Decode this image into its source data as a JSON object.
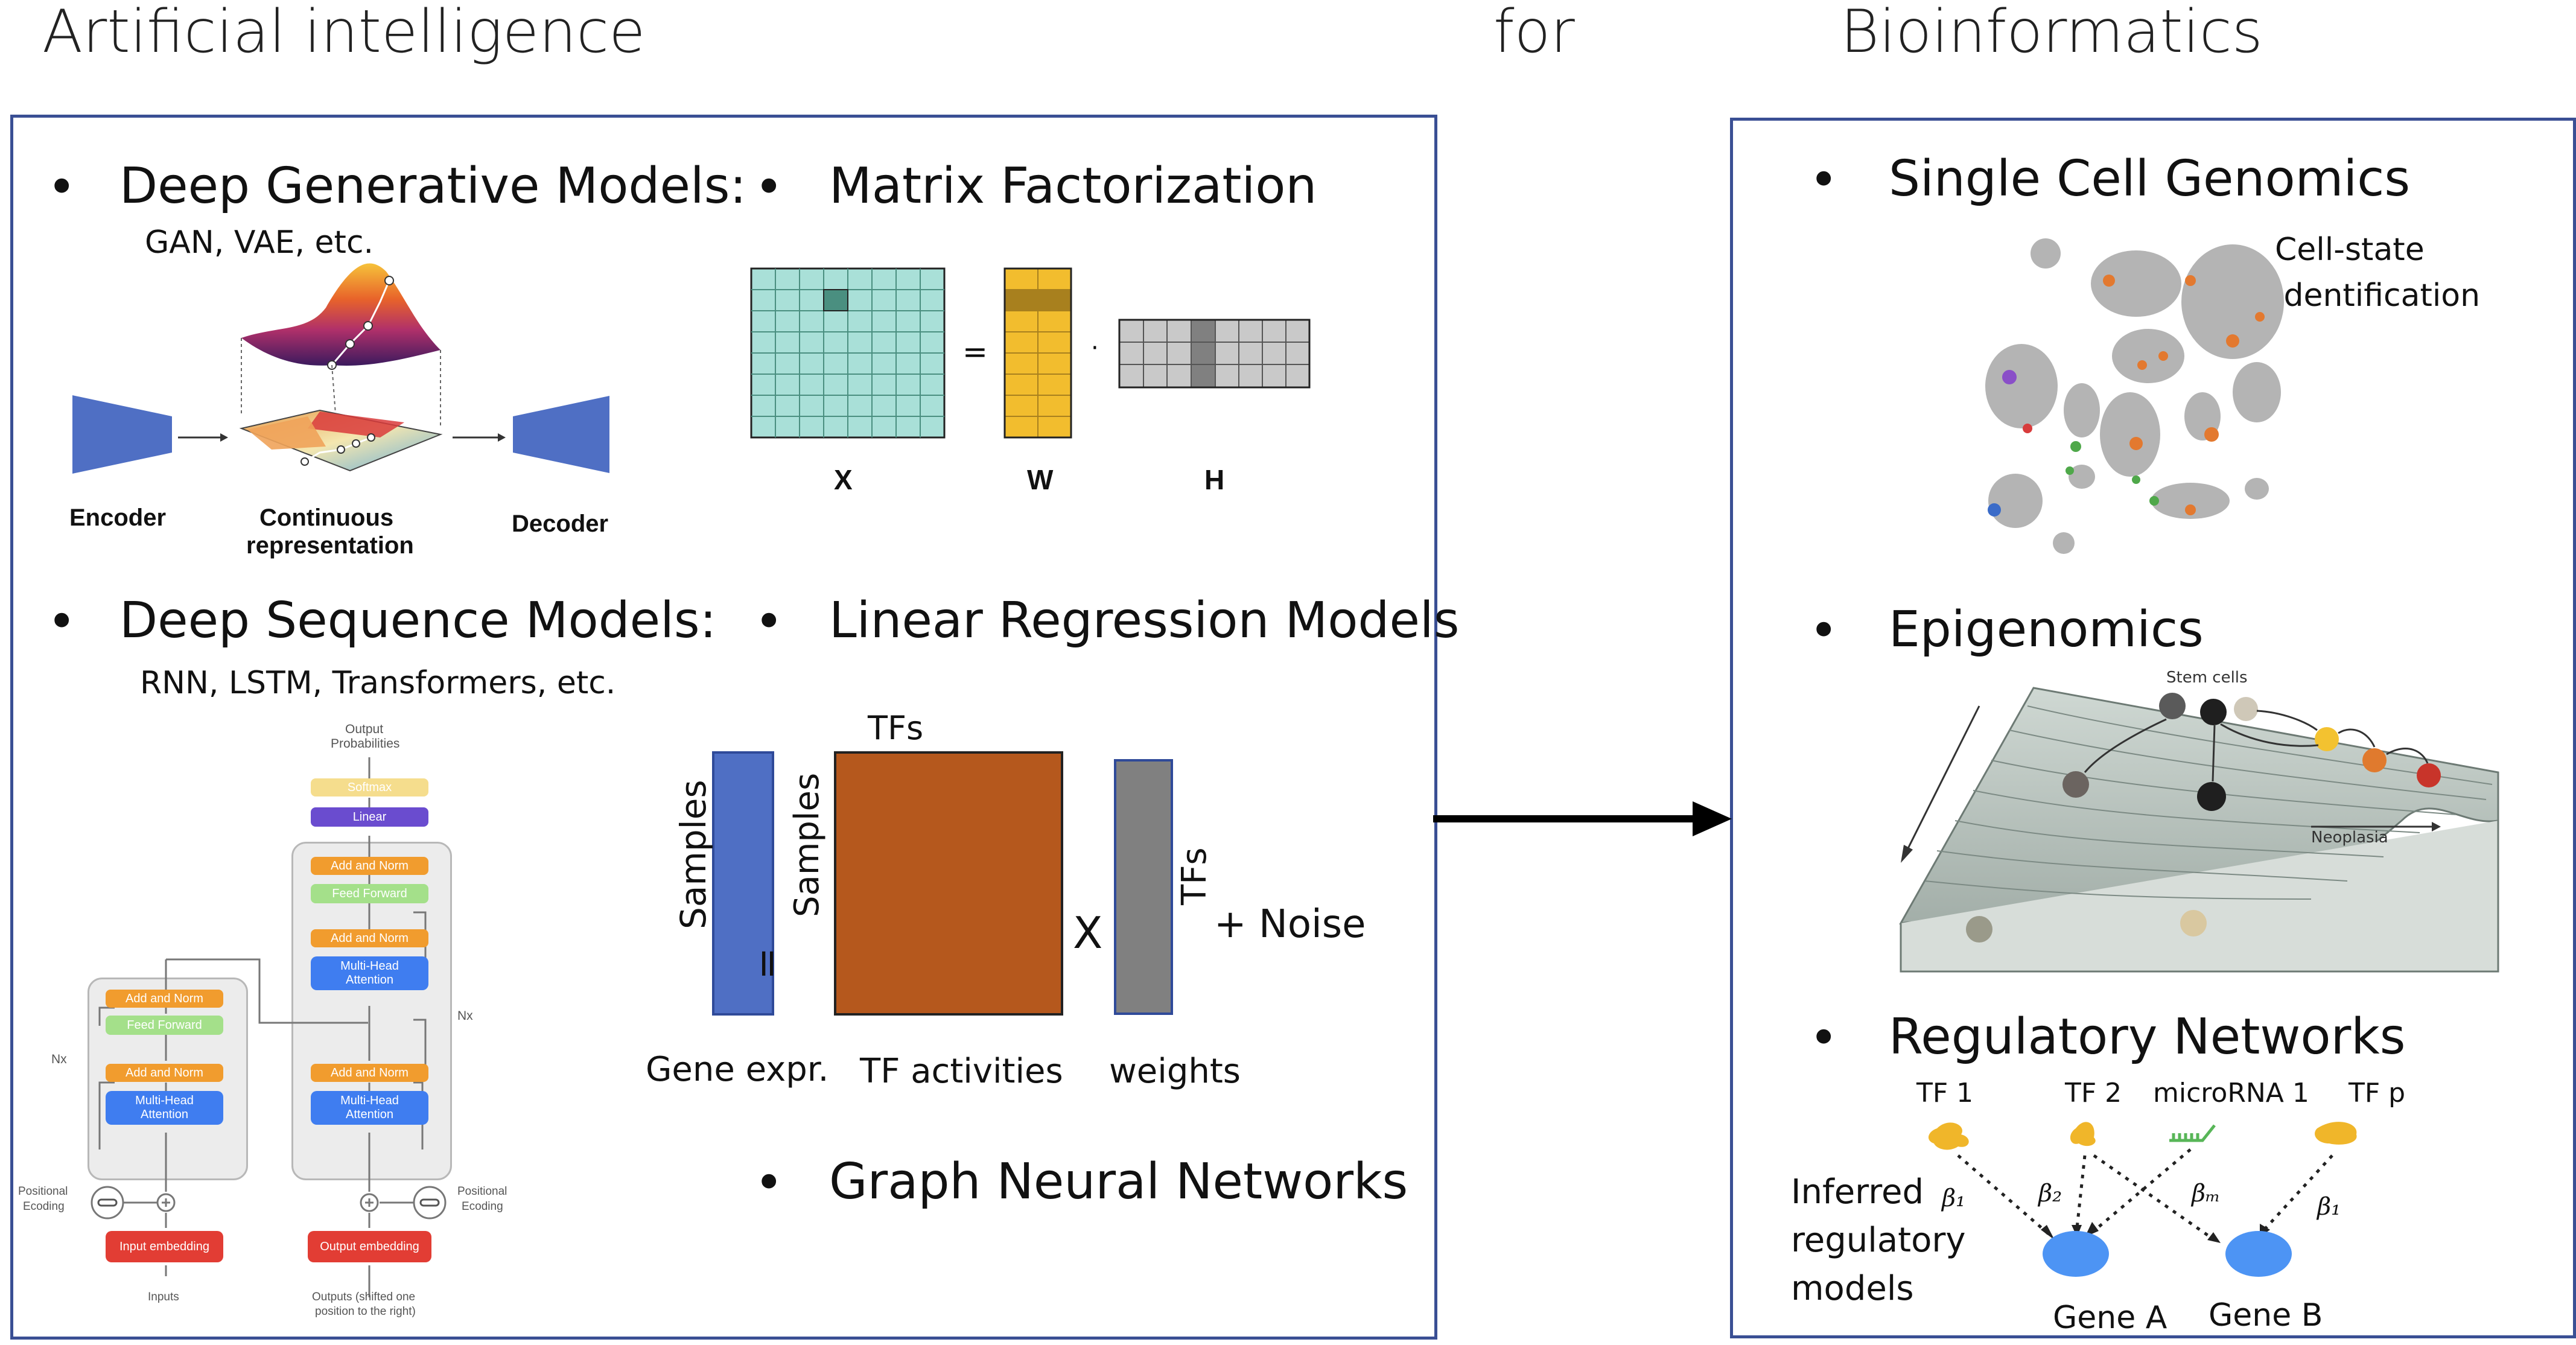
{
  "header": {
    "left": "Artificial intelligence",
    "middle": "for",
    "right": "Bioinformatics"
  },
  "bullet": "•",
  "ai": {
    "dgm": {
      "title": "Deep Generative Models:",
      "subtitle": "GAN, VAE, etc.",
      "encoder": "Encoder",
      "continuous": "Continuous",
      "representation": "representation",
      "decoder": "Decoder"
    },
    "mf": {
      "title": "Matrix Factorization",
      "x": "X",
      "w": "W",
      "h": "H",
      "equals": "=",
      "dot": "·"
    },
    "dsm": {
      "title": "Deep Sequence Models:",
      "subtitle": "RNN, LSTM, Transformers, etc."
    },
    "lrm": {
      "title": "Linear Regression Models",
      "tfs_top": "TFs",
      "samples_left": "Samples",
      "samples_mid": "Samples",
      "equals": "=",
      "times": "X",
      "tfs_side": "TFs",
      "noise": "+ Noise",
      "gene_expr": "Gene expr.",
      "tf_activities": "TF activities",
      "weights": "weights"
    },
    "gnn": {
      "title": "Graph Neural Networks"
    },
    "transformer": {
      "output_prob_1": "Output",
      "output_prob_2": "Probabilities",
      "softmax": "Softmax",
      "linear": "Linear",
      "add_norm": "Add and Norm",
      "feed_forward": "Feed Forward",
      "mha_1": "Multi-Head",
      "mha_2": "Attention",
      "nx": "Nx",
      "pos_1": "Positional",
      "pos_2": "Ecoding",
      "input_embedding": "Input embedding",
      "output_embedding": "Output embedding",
      "inputs": "Inputs",
      "outputs_1": "Outputs (shifted one",
      "outputs_2": "position to the right)"
    }
  },
  "bio": {
    "scg": {
      "title": "Single Cell Genomics",
      "note_1": "Cell-state",
      "note_2": "identification"
    },
    "epi": {
      "title": "Epigenomics",
      "stem": "Stem cells",
      "neoplasia": "Neoplasia"
    },
    "reg": {
      "title": "Regulatory Networks",
      "tf1": "TF 1",
      "tf2": "TF 2",
      "mirna": "microRNA 1",
      "tfp": "TF p",
      "inferred_1": "Inferred",
      "inferred_2": "regulatory",
      "inferred_3": "models",
      "b1": "β₁",
      "b2": "β₂",
      "bm": "βₘ",
      "b1b": "β₁",
      "gene_a": "Gene A",
      "gene_b": "Gene B"
    }
  },
  "colors": {
    "frame": "#3a4f94",
    "teal": "#a9e0d8",
    "teal_dark": "#4a8f80",
    "gold": "#f2bd2e",
    "gold_dark": "#a8801e",
    "grid_gray": "#c9c9c9",
    "dark_gray": "#808080",
    "blue_bar": "#4f6fc4",
    "brown": "#b5581d",
    "gray_bar": "#808080",
    "gene_blue": "#4d94f4",
    "tf_gold": "#f0b62a",
    "mirna_green": "#58b658"
  }
}
